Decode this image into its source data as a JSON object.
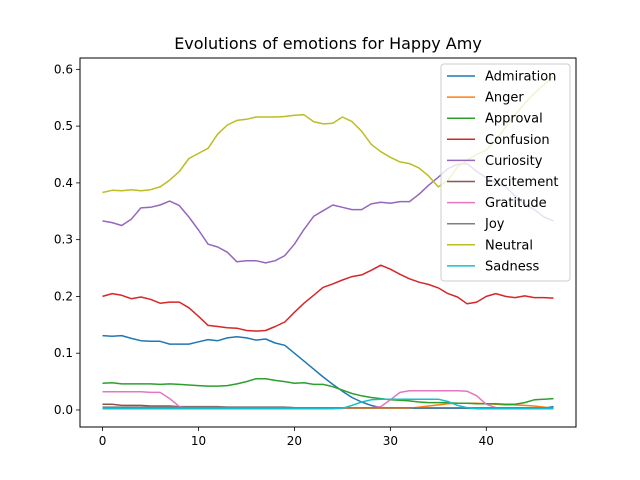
{
  "chart_data": {
    "type": "line",
    "title": "Evolutions of emotions for Happy Amy",
    "xlabel": "",
    "ylabel": "",
    "xlim": [
      -2.35,
      49.35
    ],
    "ylim": [
      -0.03,
      0.62
    ],
    "xticks": [
      0,
      10,
      20,
      30,
      40
    ],
    "yticks": [
      0.0,
      0.1,
      0.2,
      0.3,
      0.4,
      0.5,
      0.6
    ],
    "ytick_labels": [
      "0.0",
      "0.1",
      "0.2",
      "0.3",
      "0.4",
      "0.5",
      "0.6"
    ],
    "grid": false,
    "legend_position": "top-right",
    "x": [
      0,
      1,
      2,
      3,
      4,
      5,
      6,
      7,
      8,
      9,
      10,
      11,
      12,
      13,
      14,
      15,
      16,
      17,
      18,
      19,
      20,
      21,
      22,
      23,
      24,
      25,
      26,
      27,
      28,
      29,
      30,
      31,
      32,
      33,
      34,
      35,
      36,
      37,
      38,
      39,
      40,
      41,
      42,
      43,
      44,
      45,
      46,
      47
    ],
    "series": [
      {
        "name": "Admiration",
        "color": "#1f77b4",
        "values": [
          0.131,
          0.13,
          0.131,
          0.126,
          0.122,
          0.121,
          0.121,
          0.116,
          0.116,
          0.116,
          0.12,
          0.124,
          0.122,
          0.127,
          0.129,
          0.127,
          0.123,
          0.125,
          0.118,
          0.114,
          0.1,
          0.086,
          0.072,
          0.058,
          0.045,
          0.033,
          0.022,
          0.014,
          0.008,
          0.004,
          0.003,
          0.003,
          0.003,
          0.003,
          0.003,
          0.003,
          0.003,
          0.003,
          0.003,
          0.003,
          0.003,
          0.003,
          0.003,
          0.003,
          0.003,
          0.003,
          0.003,
          0.006
        ]
      },
      {
        "name": "Anger",
        "color": "#ff7f0e",
        "values": [
          0.003,
          0.003,
          0.003,
          0.003,
          0.003,
          0.003,
          0.003,
          0.003,
          0.003,
          0.003,
          0.003,
          0.003,
          0.003,
          0.003,
          0.003,
          0.003,
          0.003,
          0.003,
          0.003,
          0.003,
          0.003,
          0.003,
          0.003,
          0.003,
          0.003,
          0.003,
          0.003,
          0.003,
          0.003,
          0.003,
          0.003,
          0.003,
          0.003,
          0.005,
          0.007,
          0.009,
          0.011,
          0.012,
          0.012,
          0.012,
          0.011,
          0.01,
          0.009,
          0.009,
          0.008,
          0.007,
          0.005,
          0.003
        ]
      },
      {
        "name": "Approval",
        "color": "#2ca02c",
        "values": [
          0.047,
          0.048,
          0.046,
          0.046,
          0.046,
          0.046,
          0.045,
          0.046,
          0.045,
          0.044,
          0.043,
          0.042,
          0.042,
          0.043,
          0.046,
          0.05,
          0.055,
          0.055,
          0.052,
          0.05,
          0.047,
          0.048,
          0.045,
          0.045,
          0.041,
          0.035,
          0.029,
          0.025,
          0.022,
          0.02,
          0.018,
          0.017,
          0.016,
          0.014,
          0.013,
          0.013,
          0.013,
          0.012,
          0.012,
          0.011,
          0.011,
          0.011,
          0.01,
          0.01,
          0.013,
          0.018,
          0.019,
          0.02
        ]
      },
      {
        "name": "Confusion",
        "color": "#d62728",
        "values": [
          0.2,
          0.205,
          0.202,
          0.196,
          0.199,
          0.195,
          0.188,
          0.19,
          0.19,
          0.18,
          0.165,
          0.149,
          0.147,
          0.145,
          0.144,
          0.14,
          0.139,
          0.14,
          0.147,
          0.155,
          0.172,
          0.188,
          0.202,
          0.216,
          0.222,
          0.229,
          0.235,
          0.238,
          0.246,
          0.255,
          0.248,
          0.239,
          0.231,
          0.225,
          0.221,
          0.215,
          0.205,
          0.199,
          0.187,
          0.19,
          0.2,
          0.205,
          0.2,
          0.198,
          0.201,
          0.198,
          0.198,
          0.197
        ]
      },
      {
        "name": "Curiosity",
        "color": "#9467bd",
        "values": [
          0.333,
          0.33,
          0.325,
          0.336,
          0.356,
          0.357,
          0.361,
          0.368,
          0.36,
          0.34,
          0.317,
          0.292,
          0.287,
          0.278,
          0.261,
          0.263,
          0.263,
          0.259,
          0.263,
          0.272,
          0.292,
          0.318,
          0.341,
          0.351,
          0.361,
          0.357,
          0.353,
          0.353,
          0.363,
          0.366,
          0.364,
          0.367,
          0.367,
          0.38,
          0.396,
          0.41,
          0.425,
          0.433,
          0.434,
          0.42,
          0.409,
          0.4,
          0.393,
          0.377,
          0.362,
          0.353,
          0.34,
          0.333
        ]
      },
      {
        "name": "Excitement",
        "color": "#8c564b",
        "values": [
          0.01,
          0.01,
          0.008,
          0.008,
          0.008,
          0.007,
          0.007,
          0.007,
          0.006,
          0.006,
          0.006,
          0.006,
          0.006,
          0.005,
          0.005,
          0.005,
          0.005,
          0.005,
          0.005,
          0.005,
          0.004,
          0.004,
          0.004,
          0.004,
          0.004,
          0.004,
          0.004,
          0.004,
          0.004,
          0.004,
          0.004,
          0.004,
          0.004,
          0.004,
          0.004,
          0.004,
          0.004,
          0.004,
          0.004,
          0.004,
          0.004,
          0.004,
          0.004,
          0.004,
          0.004,
          0.004,
          0.004,
          0.004
        ]
      },
      {
        "name": "Gratitude",
        "color": "#e377c2",
        "values": [
          0.032,
          0.032,
          0.032,
          0.032,
          0.032,
          0.031,
          0.031,
          0.02,
          0.006,
          0.004,
          0.004,
          0.004,
          0.004,
          0.004,
          0.004,
          0.004,
          0.004,
          0.004,
          0.004,
          0.004,
          0.004,
          0.004,
          0.004,
          0.004,
          0.004,
          0.004,
          0.004,
          0.004,
          0.004,
          0.006,
          0.018,
          0.031,
          0.034,
          0.034,
          0.034,
          0.034,
          0.034,
          0.034,
          0.033,
          0.025,
          0.01,
          0.004,
          0.004,
          0.004,
          0.004,
          0.004,
          0.004,
          0.004
        ]
      },
      {
        "name": "Joy",
        "color": "#7f7f7f",
        "values": [
          0.005,
          0.005,
          0.005,
          0.005,
          0.005,
          0.005,
          0.005,
          0.005,
          0.005,
          0.005,
          0.005,
          0.005,
          0.005,
          0.005,
          0.005,
          0.005,
          0.005,
          0.005,
          0.005,
          0.005,
          0.004,
          0.004,
          0.004,
          0.004,
          0.004,
          0.004,
          0.004,
          0.004,
          0.004,
          0.004,
          0.004,
          0.004,
          0.004,
          0.004,
          0.004,
          0.004,
          0.004,
          0.004,
          0.004,
          0.004,
          0.004,
          0.004,
          0.004,
          0.004,
          0.004,
          0.004,
          0.004,
          0.004
        ]
      },
      {
        "name": "Neutral",
        "color": "#bcbd22",
        "values": [
          0.383,
          0.387,
          0.386,
          0.388,
          0.386,
          0.388,
          0.393,
          0.405,
          0.42,
          0.443,
          0.452,
          0.461,
          0.486,
          0.502,
          0.51,
          0.512,
          0.516,
          0.516,
          0.516,
          0.517,
          0.519,
          0.52,
          0.508,
          0.504,
          0.505,
          0.516,
          0.508,
          0.491,
          0.468,
          0.455,
          0.445,
          0.437,
          0.434,
          0.426,
          0.412,
          0.393,
          0.405,
          0.428,
          0.44,
          0.45,
          0.458,
          0.475,
          0.498,
          0.52,
          0.54,
          0.558,
          0.573,
          0.588
        ]
      },
      {
        "name": "Sadness",
        "color": "#17becf",
        "values": [
          0.002,
          0.002,
          0.002,
          0.002,
          0.002,
          0.002,
          0.002,
          0.002,
          0.002,
          0.002,
          0.002,
          0.002,
          0.002,
          0.002,
          0.002,
          0.002,
          0.002,
          0.002,
          0.002,
          0.002,
          0.002,
          0.002,
          0.002,
          0.002,
          0.002,
          0.003,
          0.008,
          0.014,
          0.018,
          0.019,
          0.019,
          0.019,
          0.019,
          0.019,
          0.019,
          0.019,
          0.015,
          0.008,
          0.004,
          0.002,
          0.002,
          0.002,
          0.002,
          0.002,
          0.002,
          0.002,
          0.002,
          0.002
        ]
      }
    ]
  }
}
